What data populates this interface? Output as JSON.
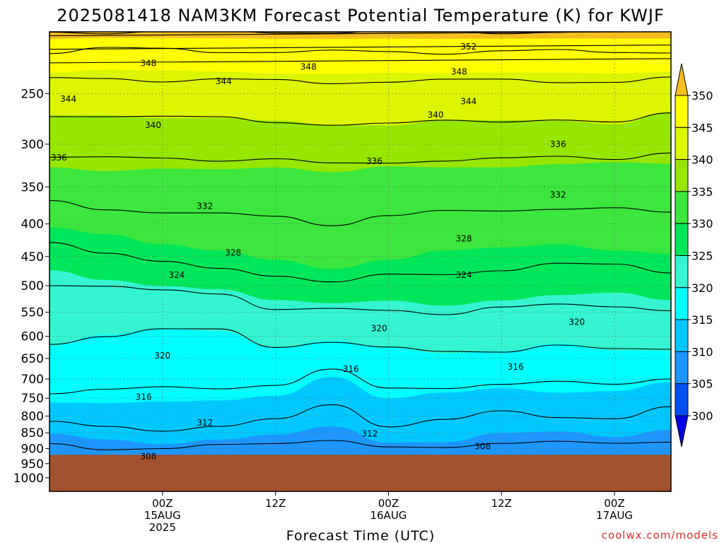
{
  "chart_data": {
    "type": "heatmap",
    "title": "2025081418 NAM3KM Forecast Potential Temperature (K) for KWJF",
    "xlabel": "Forecast Time (UTC)",
    "ylabel": "",
    "credit": "coolwx.com/models",
    "y_scale": "log-pressure",
    "y_range_hpa": [
      200,
      1050
    ],
    "y_ticks": [
      250,
      300,
      350,
      400,
      450,
      500,
      550,
      600,
      650,
      700,
      750,
      800,
      850,
      900,
      950,
      1000
    ],
    "x_range_hours": [
      18,
      84
    ],
    "x_ticks": [
      {
        "hour": 30,
        "lines": [
          "00Z",
          "15AUG",
          "2025"
        ]
      },
      {
        "hour": 42,
        "lines": [
          "12Z"
        ]
      },
      {
        "hour": 54,
        "lines": [
          "00Z",
          "16AUG"
        ]
      },
      {
        "hour": 66,
        "lines": [
          "12Z"
        ]
      },
      {
        "hour": 78,
        "lines": [
          "00Z",
          "17AUG"
        ]
      }
    ],
    "grid": true,
    "ground_below_hpa": 920,
    "ground_color": "#a0522d",
    "colorbar": {
      "levels": [
        300,
        305,
        310,
        315,
        320,
        325,
        330,
        335,
        340,
        345,
        350
      ],
      "labels": [
        "300",
        "305",
        "310",
        "315",
        "320",
        "325",
        "330",
        "335",
        "340",
        "345",
        "350"
      ],
      "colors": [
        "#0000e6",
        "#0050f0",
        "#1e96ff",
        "#00c8ff",
        "#00ffff",
        "#34f5cf",
        "#00e65a",
        "#3ce63c",
        "#96e600",
        "#dcf500",
        "#ffff00",
        "#f5be1e"
      ]
    },
    "contour_levels": [
      308,
      312,
      316,
      320,
      324,
      328,
      332,
      336,
      340,
      344,
      348,
      352
    ],
    "contour_labels": [
      {
        "text": "352",
        "hour": 62.5,
        "p": 211
      },
      {
        "text": "348",
        "hour": 28.5,
        "p": 224
      },
      {
        "text": "348",
        "hour": 45.5,
        "p": 227
      },
      {
        "text": "348",
        "hour": 61.5,
        "p": 231
      },
      {
        "text": "344",
        "hour": 20.0,
        "p": 255
      },
      {
        "text": "344",
        "hour": 36.5,
        "p": 239
      },
      {
        "text": "344",
        "hour": 62.5,
        "p": 257
      },
      {
        "text": "340",
        "hour": 29.0,
        "p": 280
      },
      {
        "text": "340",
        "hour": 59.0,
        "p": 270
      },
      {
        "text": "336",
        "hour": 19.0,
        "p": 315
      },
      {
        "text": "336",
        "hour": 52.5,
        "p": 319
      },
      {
        "text": "336",
        "hour": 72.0,
        "p": 300
      },
      {
        "text": "332",
        "hour": 34.5,
        "p": 375
      },
      {
        "text": "332",
        "hour": 72.0,
        "p": 360
      },
      {
        "text": "328",
        "hour": 37.5,
        "p": 444
      },
      {
        "text": "328",
        "hour": 62.0,
        "p": 422
      },
      {
        "text": "324",
        "hour": 31.5,
        "p": 481
      },
      {
        "text": "324",
        "hour": 62.0,
        "p": 481
      },
      {
        "text": "320",
        "hour": 53.0,
        "p": 583
      },
      {
        "text": "320",
        "hour": 74.0,
        "p": 570
      },
      {
        "text": "320",
        "hour": 30.0,
        "p": 643
      },
      {
        "text": "316",
        "hour": 50.0,
        "p": 675
      },
      {
        "text": "316",
        "hour": 67.5,
        "p": 670
      },
      {
        "text": "316",
        "hour": 28.0,
        "p": 747
      },
      {
        "text": "312",
        "hour": 34.5,
        "p": 820
      },
      {
        "text": "312",
        "hour": 52.0,
        "p": 853
      },
      {
        "text": "308",
        "hour": 28.5,
        "p": 925
      },
      {
        "text": "308",
        "hour": 64.0,
        "p": 893
      }
    ],
    "isentropes": [
      {
        "k": 300,
        "p": [
          1050,
          1050,
          1050,
          1050,
          1050,
          1050,
          1050,
          1050,
          1050,
          1050,
          1050,
          1050
        ]
      },
      {
        "k": 306,
        "p": [
          915,
          925,
          920,
          915,
          905,
          910,
          920,
          922,
          905,
          905,
          918,
          920
        ]
      },
      {
        "k": 310,
        "p": [
          852,
          870,
          885,
          870,
          855,
          830,
          880,
          878,
          850,
          845,
          862,
          840
        ]
      },
      {
        "k": 314,
        "p": [
          790,
          798,
          795,
          790,
          775,
          710,
          775,
          750,
          735,
          760,
          748,
          720
        ]
      },
      {
        "k": 318,
        "p": [
          680,
          665,
          660,
          660,
          655,
          650,
          680,
          690,
          690,
          665,
          680,
          670
        ]
      },
      {
        "k": 322,
        "p": [
          565,
          535,
          515,
          525,
          595,
          570,
          575,
          590,
          580,
          570,
          585,
          595
        ]
      },
      {
        "k": 326,
        "p": [
          445,
          475,
          495,
          500,
          505,
          520,
          512,
          520,
          510,
          500,
          490,
          505
        ]
      },
      {
        "k": 330,
        "p": [
          405,
          415,
          430,
          440,
          455,
          470,
          455,
          440,
          435,
          430,
          440,
          445
        ]
      },
      {
        "k": 334,
        "p": [
          338,
          345,
          340,
          340,
          335,
          340,
          330,
          335,
          335,
          330,
          325,
          335
        ]
      },
      {
        "k": 338,
        "p": [
          292,
          290,
          292,
          295,
          300,
          307,
          310,
          300,
          300,
          300,
          305,
          285
        ]
      },
      {
        "k": 342,
        "p": [
          250,
          252,
          255,
          252,
          253,
          255,
          253,
          252,
          252,
          253,
          255,
          250
        ]
      },
      {
        "k": 346,
        "p": [
          226,
          222,
          222,
          224,
          226,
          226,
          225,
          226,
          225,
          225,
          225,
          225
        ]
      },
      {
        "k": 351,
        "p": [
          200,
          200,
          200,
          200,
          200,
          200,
          200,
          200,
          200,
          200,
          200,
          200
        ]
      }
    ],
    "isentrope_hours": [
      18,
      24,
      30,
      36,
      42,
      48,
      54,
      60,
      66,
      72,
      78,
      84
    ]
  }
}
